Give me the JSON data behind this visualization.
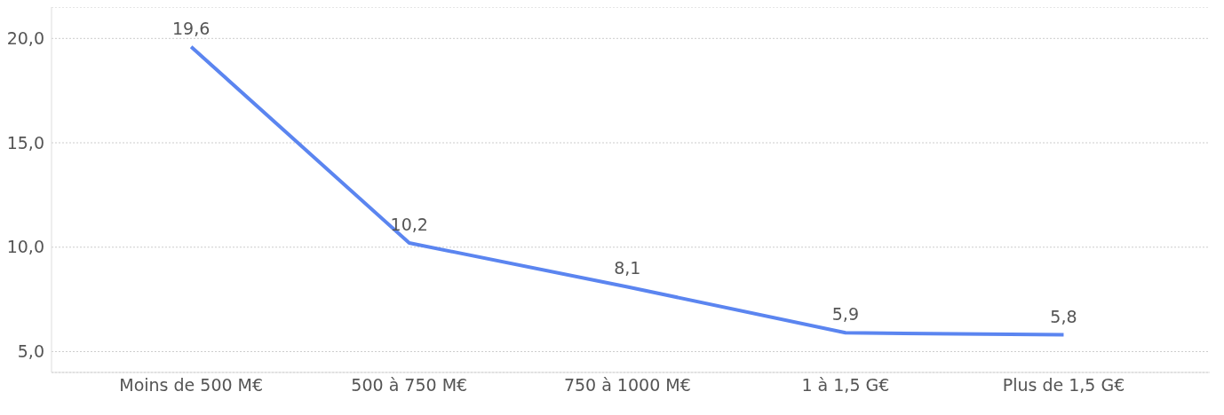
{
  "chart_data": {
    "type": "line",
    "categories": [
      "Moins de 500 M€",
      "500 à 750 M€",
      "750 à 1000 M€",
      "1 à 1,5 G€",
      "Plus de 1,5 G€"
    ],
    "series": [
      {
        "color": "#5b85f0",
        "values": [
          19.6,
          10.2,
          8.1,
          5.9,
          5.8
        ],
        "value_labels": [
          "19,6",
          "10,2",
          "8,1",
          "5,9",
          "5,8"
        ]
      }
    ],
    "ylim": [
      4,
      21.5
    ],
    "yticks": [
      {
        "value": 5,
        "label": "5,0"
      },
      {
        "value": 10,
        "label": "10,0"
      },
      {
        "value": 15,
        "label": "15,0"
      },
      {
        "value": 20,
        "label": "20,0"
      }
    ],
    "grid": "y",
    "marker": "none",
    "line_style": "solid"
  }
}
